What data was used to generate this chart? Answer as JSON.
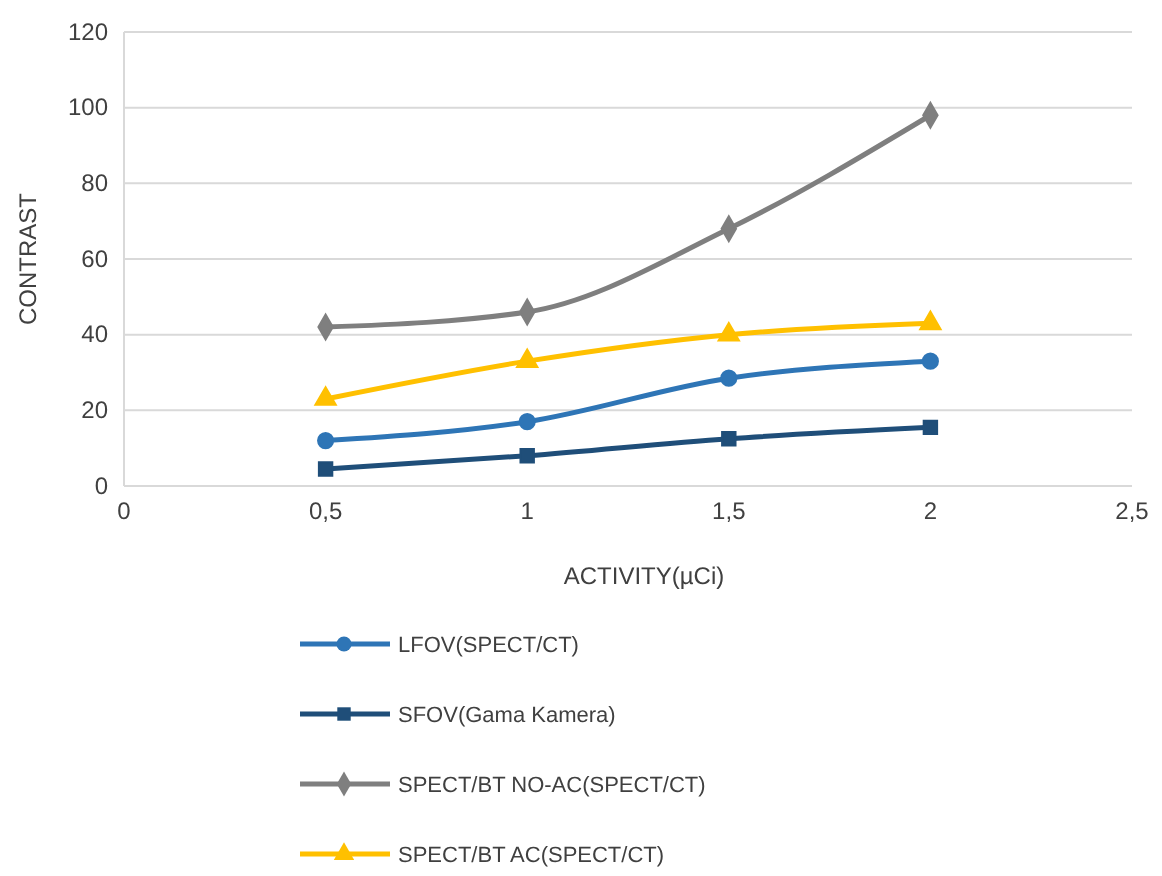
{
  "chart_data": {
    "type": "line",
    "xlabel": "ACTIVITY(µCi)",
    "ylabel": "CONTRAST",
    "x": [
      0.5,
      1,
      1.5,
      2
    ],
    "series": [
      {
        "name": "LFOV(SPECT/CT)",
        "color": "#2e75b6",
        "marker": "circle",
        "values": [
          12,
          17,
          28.5,
          33
        ]
      },
      {
        "name": "SFOV(Gama Kamera)",
        "color": "#1f4e79",
        "marker": "square",
        "values": [
          4.5,
          8,
          12.5,
          15.5
        ]
      },
      {
        "name": "SPECT/BT NO-AC(SPECT/CT)",
        "color": "#7f7f7f",
        "marker": "diamond",
        "values": [
          42,
          46,
          68,
          98
        ]
      },
      {
        "name": "SPECT/BT AC(SPECT/CT)",
        "color": "#ffc000",
        "marker": "triangle",
        "values": [
          23,
          33,
          40,
          43
        ]
      }
    ],
    "xlim": [
      0,
      2.5
    ],
    "xticks": [
      0,
      {
        "value": 0.5,
        "label": "0,5"
      },
      1,
      {
        "value": 1.5,
        "label": "1,5"
      },
      2,
      {
        "value": 2.5,
        "label": "2,5"
      }
    ],
    "ylim": [
      0,
      120
    ],
    "yticks": [
      0,
      20,
      40,
      60,
      80,
      100,
      120
    ],
    "grid": "y",
    "legend": "bottom",
    "line_style": "solid"
  }
}
